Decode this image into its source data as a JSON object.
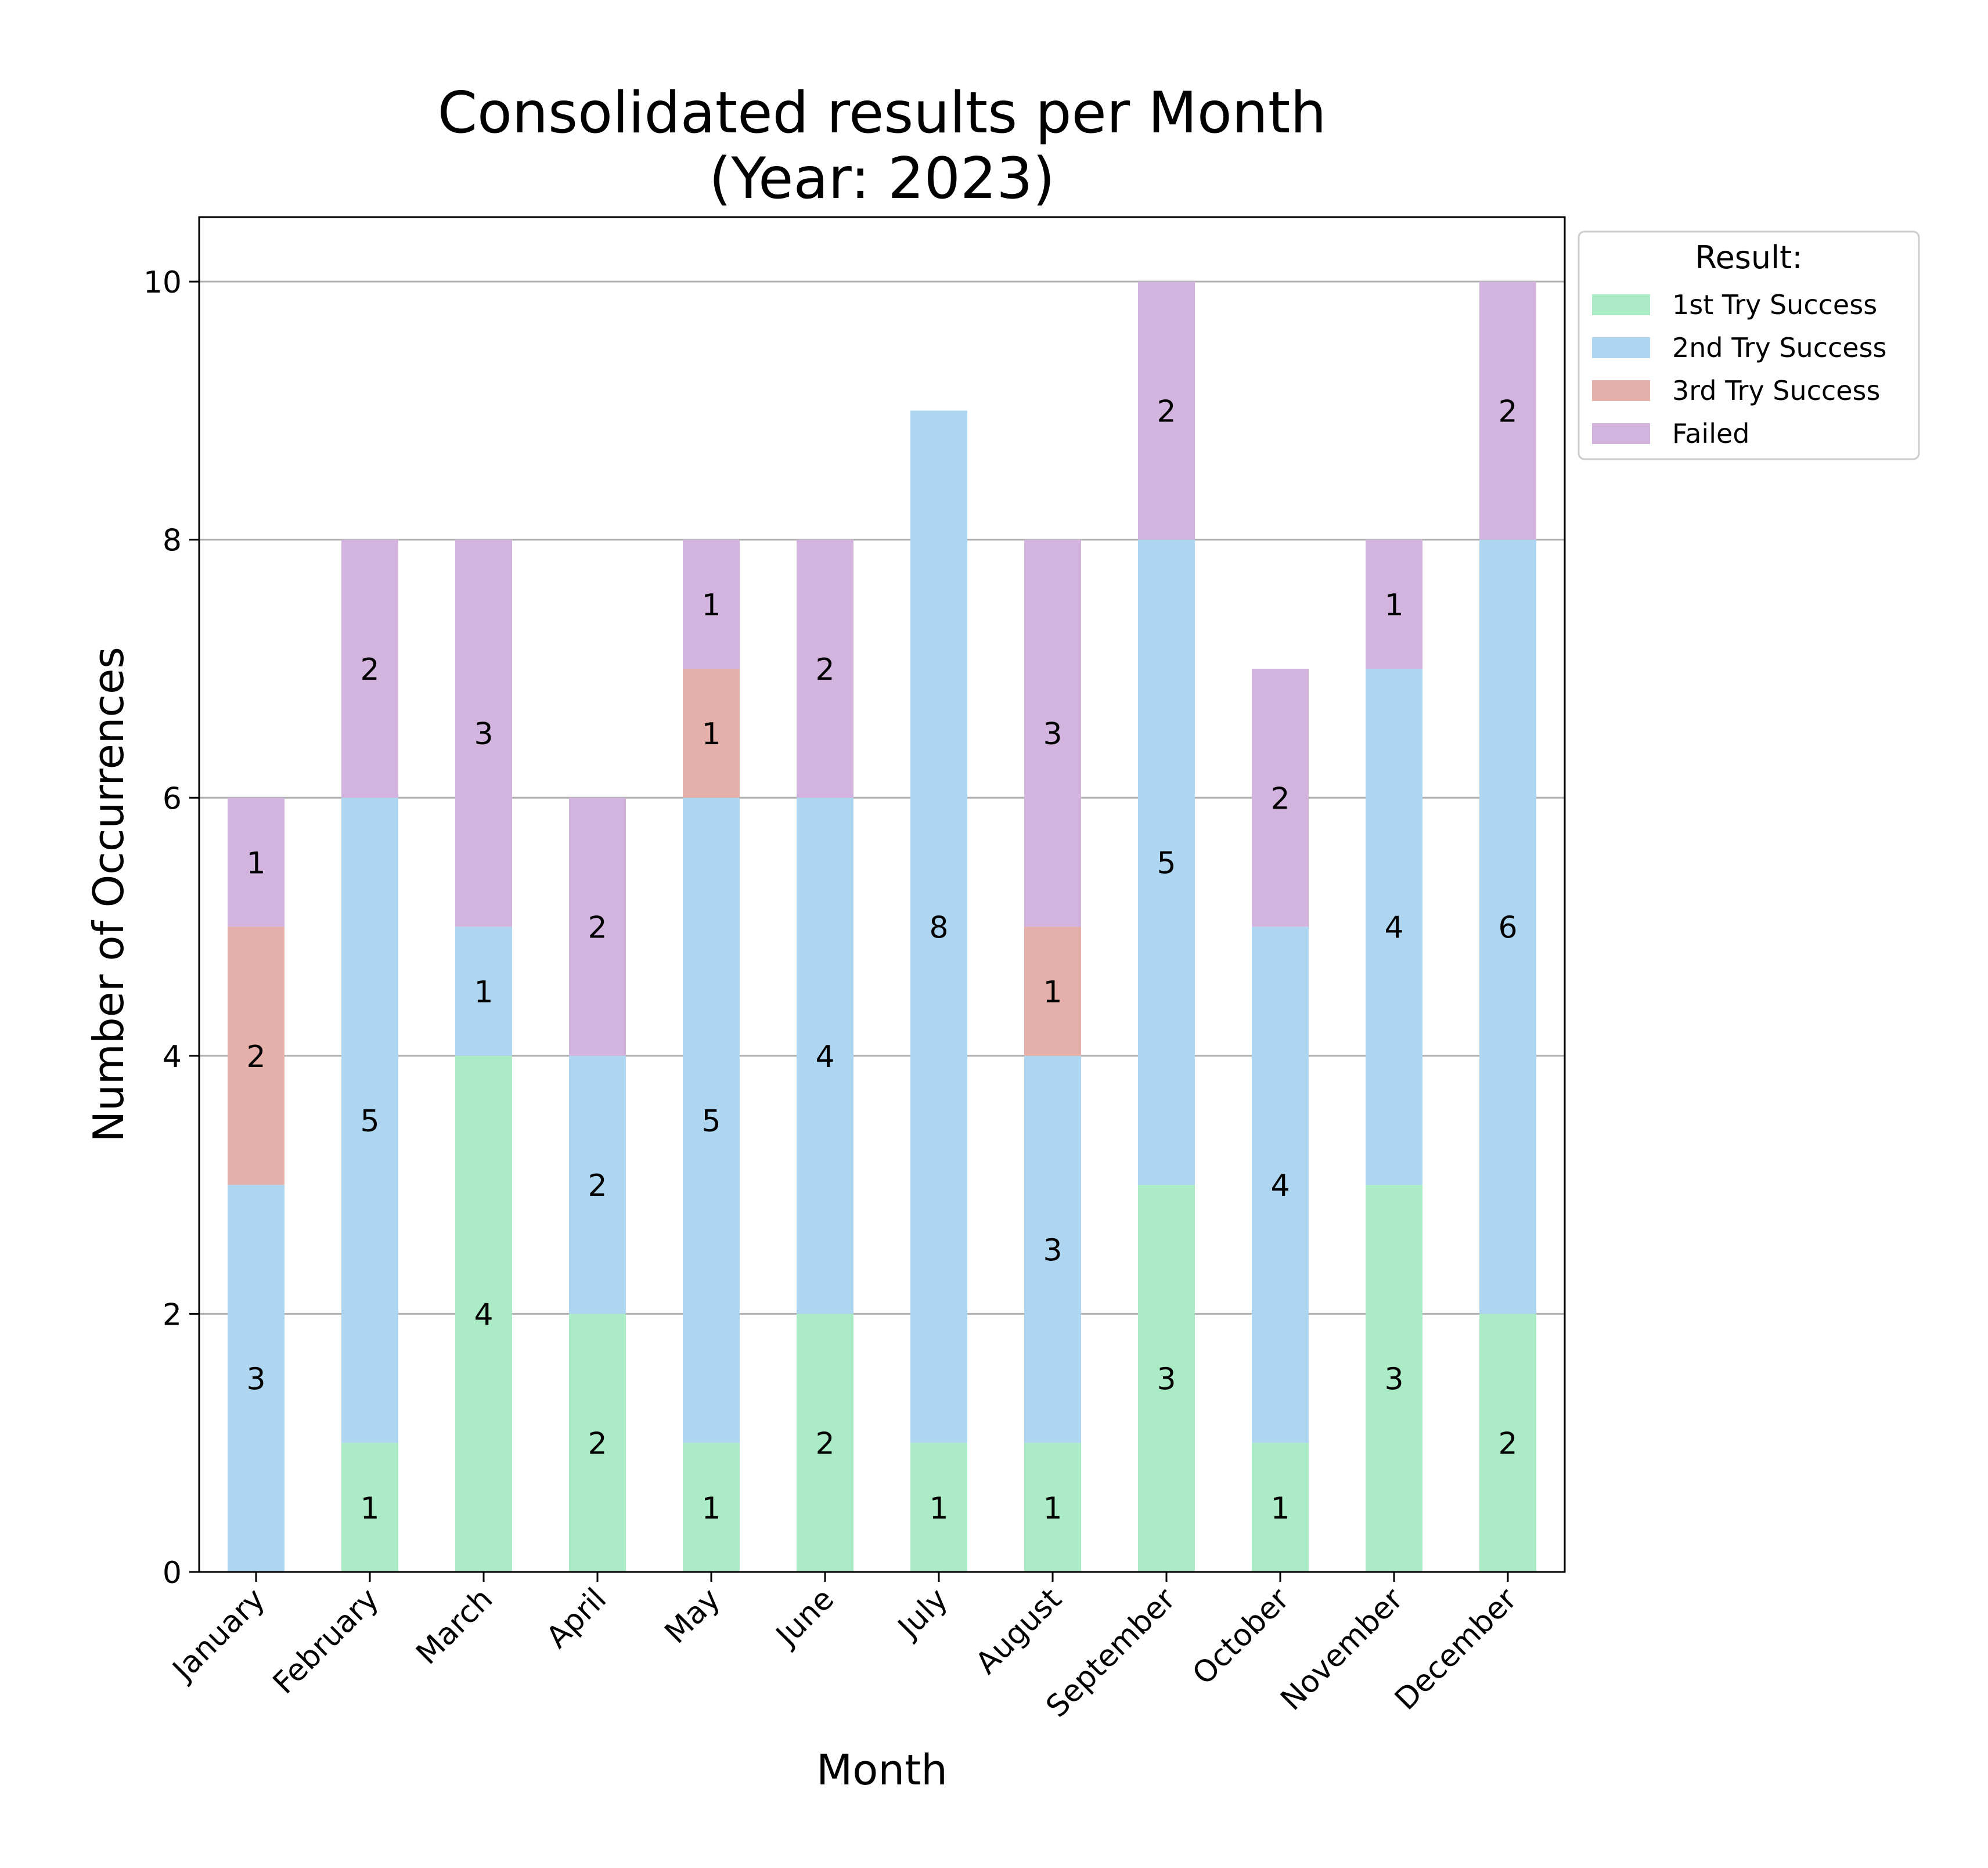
{
  "chart_data": {
    "type": "bar",
    "stacked": true,
    "title": "Consolidated results per Month\n(Year: 2023)",
    "xlabel": "Month",
    "ylabel": "Number of Occurrences",
    "ylim": [
      0,
      10.5
    ],
    "yticks": [
      0,
      2,
      4,
      6,
      8,
      10
    ],
    "grid": "y",
    "categories": [
      "January",
      "February",
      "March",
      "April",
      "May",
      "June",
      "July",
      "August",
      "September",
      "October",
      "November",
      "December"
    ],
    "series": [
      {
        "name": "1st Try Success",
        "color": "#abebc6",
        "values": [
          0,
          1,
          4,
          2,
          1,
          2,
          1,
          1,
          3,
          1,
          3,
          2
        ]
      },
      {
        "name": "2nd Try Success",
        "color": "#aed6f1",
        "values": [
          3,
          5,
          1,
          2,
          5,
          4,
          8,
          3,
          5,
          4,
          4,
          6
        ]
      },
      {
        "name": "3rd Try Success",
        "color": "#e6b0aa",
        "values": [
          2,
          0,
          0,
          0,
          1,
          0,
          0,
          1,
          0,
          0,
          0,
          0
        ]
      },
      {
        "name": "Failed",
        "color": "#d2b4de",
        "values": [
          1,
          2,
          3,
          2,
          1,
          2,
          0,
          3,
          2,
          2,
          1,
          2
        ]
      }
    ],
    "legend": {
      "title": "Result:",
      "position": "outside-top-right"
    }
  }
}
